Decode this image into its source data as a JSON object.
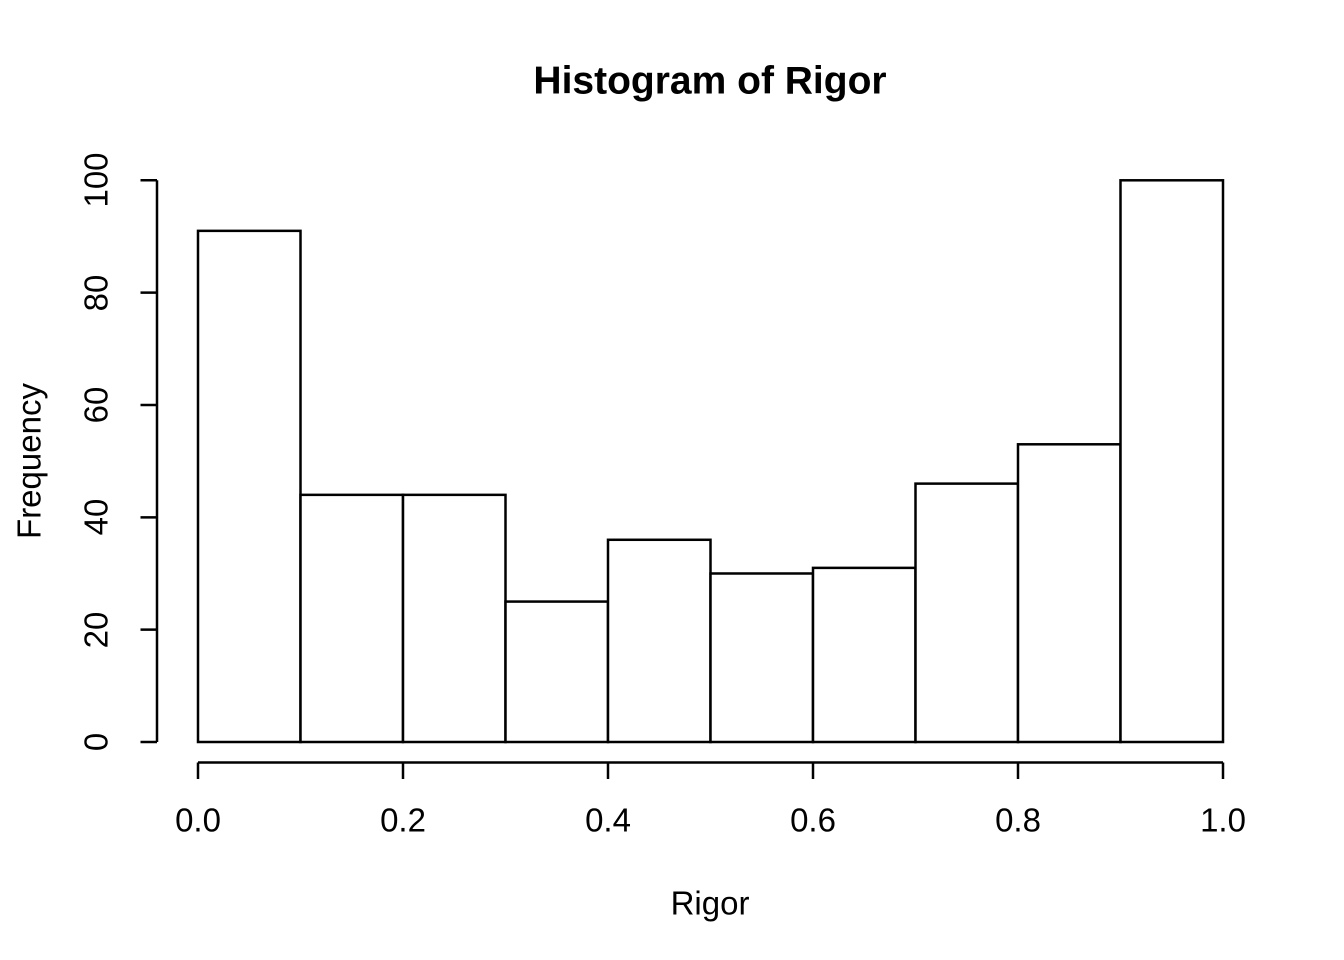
{
  "page": {
    "background": "#ffffff"
  },
  "chart_data": {
    "type": "bar",
    "subtype": "histogram",
    "title": "Histogram of Rigor",
    "xlabel": "Rigor",
    "ylabel": "Frequency",
    "bin_breaks": [
      0.0,
      0.1,
      0.2,
      0.3,
      0.4,
      0.5,
      0.6,
      0.7,
      0.8,
      0.9,
      1.0
    ],
    "values": [
      91,
      44,
      44,
      25,
      36,
      30,
      31,
      46,
      53,
      100
    ],
    "x_tick_labels": [
      "0.0",
      "0.2",
      "0.4",
      "0.6",
      "0.8",
      "1.0"
    ],
    "x_tick_values": [
      0.0,
      0.2,
      0.4,
      0.6,
      0.8,
      1.0
    ],
    "y_tick_labels": [
      "0",
      "20",
      "40",
      "60",
      "80",
      "100"
    ],
    "y_tick_values": [
      0,
      20,
      40,
      60,
      80,
      100
    ],
    "xlim": [
      0.0,
      1.0
    ],
    "ylim": [
      0,
      100
    ],
    "grid": false,
    "legend": null,
    "bar_fill": "#ffffff",
    "bar_border": "#000000",
    "axis_color": "#000000",
    "text_color": "#000000"
  }
}
